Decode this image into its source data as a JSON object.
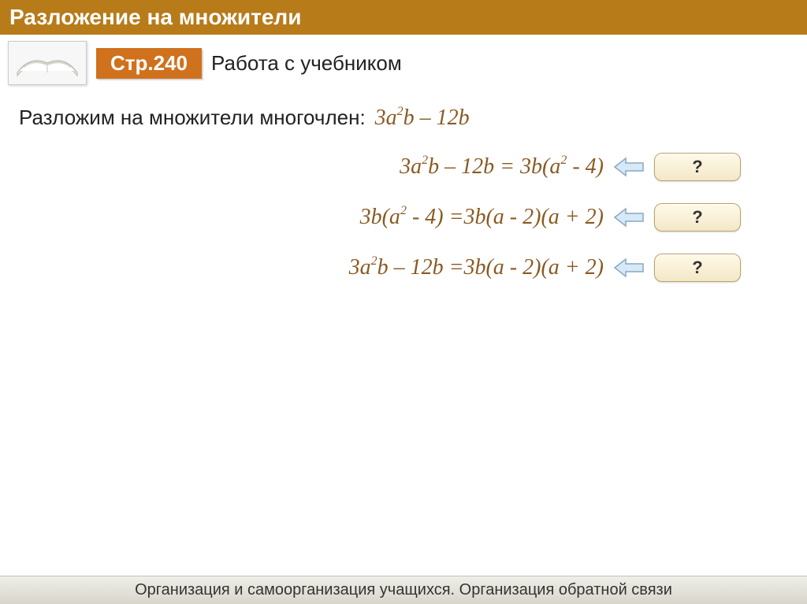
{
  "colors": {
    "title_bar_bg": "#b77b1a",
    "title_text": "#ffffff",
    "page_badge_bg": "#d0711d",
    "math_color": "#8a5a22",
    "button_gradient_top": "#fff9e8",
    "button_gradient_bottom": "#f3e8c8",
    "button_border": "#b8a46a",
    "footer_gradient_top": "#efeee8",
    "footer_gradient_bottom": "#d8d6cb",
    "arrow_fill": "#d6e9f8",
    "arrow_stroke": "#8aa8bf"
  },
  "header": {
    "title": "Разложение на множители"
  },
  "subheader": {
    "page_badge": "Стр.240",
    "work_label": "Работа с учебником",
    "book_icon": "open-book"
  },
  "content": {
    "intro_text": "Разложим на множители многочлен:",
    "intro_expr_html": "3a<sup>2</sup>b – 12b",
    "equations": [
      {
        "html": "3a<sup>2</sup>b – 12b = 3b(a<sup>2</sup> - 4)",
        "hint_label": "?"
      },
      {
        "html": "3b(a<sup>2</sup> - 4) =3b(a - 2)(a + 2)",
        "hint_label": "?"
      },
      {
        "html": "3a<sup>2</sup>b – 12b =3b(a - 2)(a + 2)",
        "hint_label": "?"
      }
    ]
  },
  "footer": {
    "text": "Организация и самоорганизация учащихся. Организация обратной связи"
  }
}
